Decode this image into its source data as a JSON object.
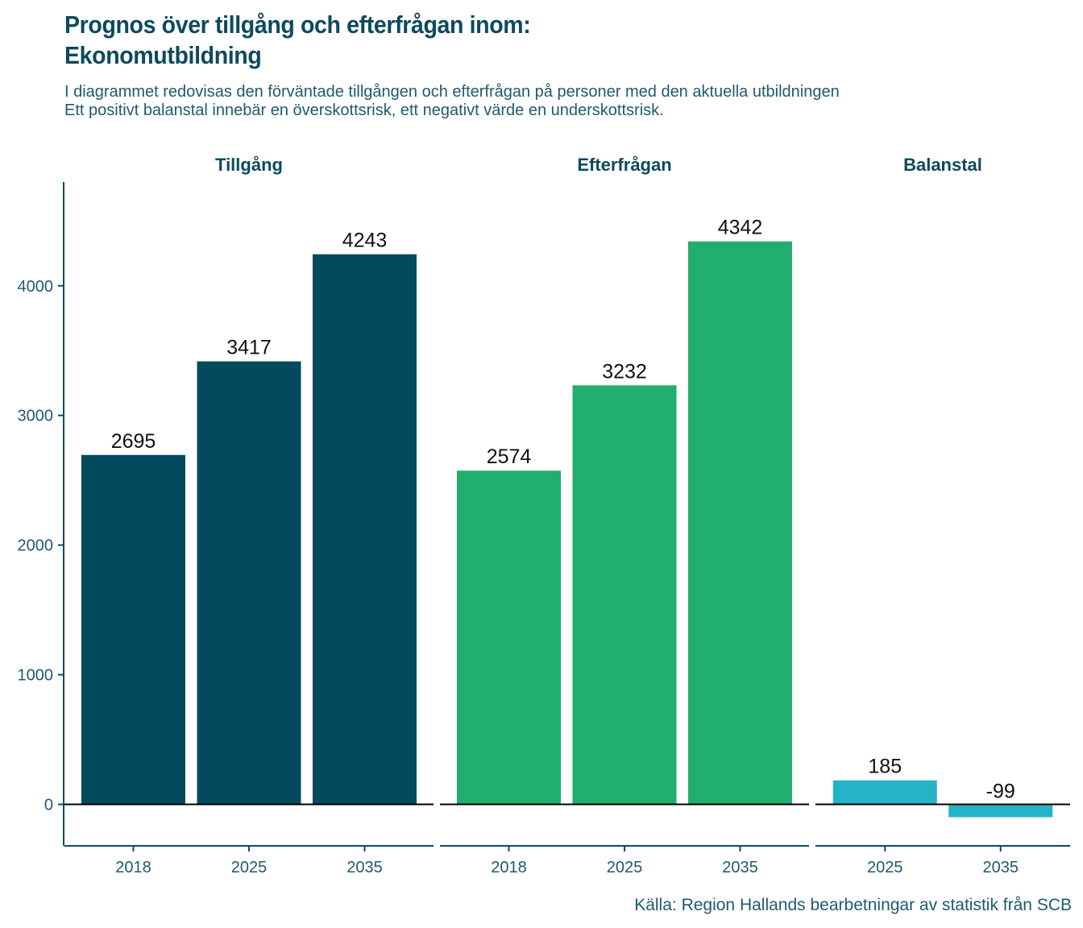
{
  "title": {
    "line1": "Prognos över tillgång och efterfrågan inom:",
    "line2": "Ekonomutbildning"
  },
  "subtitle": {
    "line1": "I diagrammet redovisas den förväntade tillgången och efterfrågan på personer med den aktuella utbildningen",
    "line2": "Ett positivt balanstal innebär en överskottsrisk, ett negativt värde en underskottsrisk."
  },
  "source": "Källa: Region Hallands bearbetningar av statistik från SCB",
  "chart_data": {
    "type": "bar",
    "ylim": [
      -320,
      4800
    ],
    "yticks": [
      0,
      1000,
      2000,
      3000,
      4000
    ],
    "grid": false,
    "panels": [
      {
        "name": "Tillgång",
        "color": "#034a5e",
        "categories": [
          "2018",
          "2025",
          "2035"
        ],
        "values": [
          2695,
          3417,
          4243
        ]
      },
      {
        "name": "Efterfrågan",
        "color": "#21ae6f",
        "categories": [
          "2018",
          "2025",
          "2035"
        ],
        "values": [
          2574,
          3232,
          4342
        ]
      },
      {
        "name": "Balanstal",
        "color": "#24b3c9",
        "categories": [
          "2025",
          "2035"
        ],
        "values": [
          185,
          -99
        ]
      }
    ]
  }
}
